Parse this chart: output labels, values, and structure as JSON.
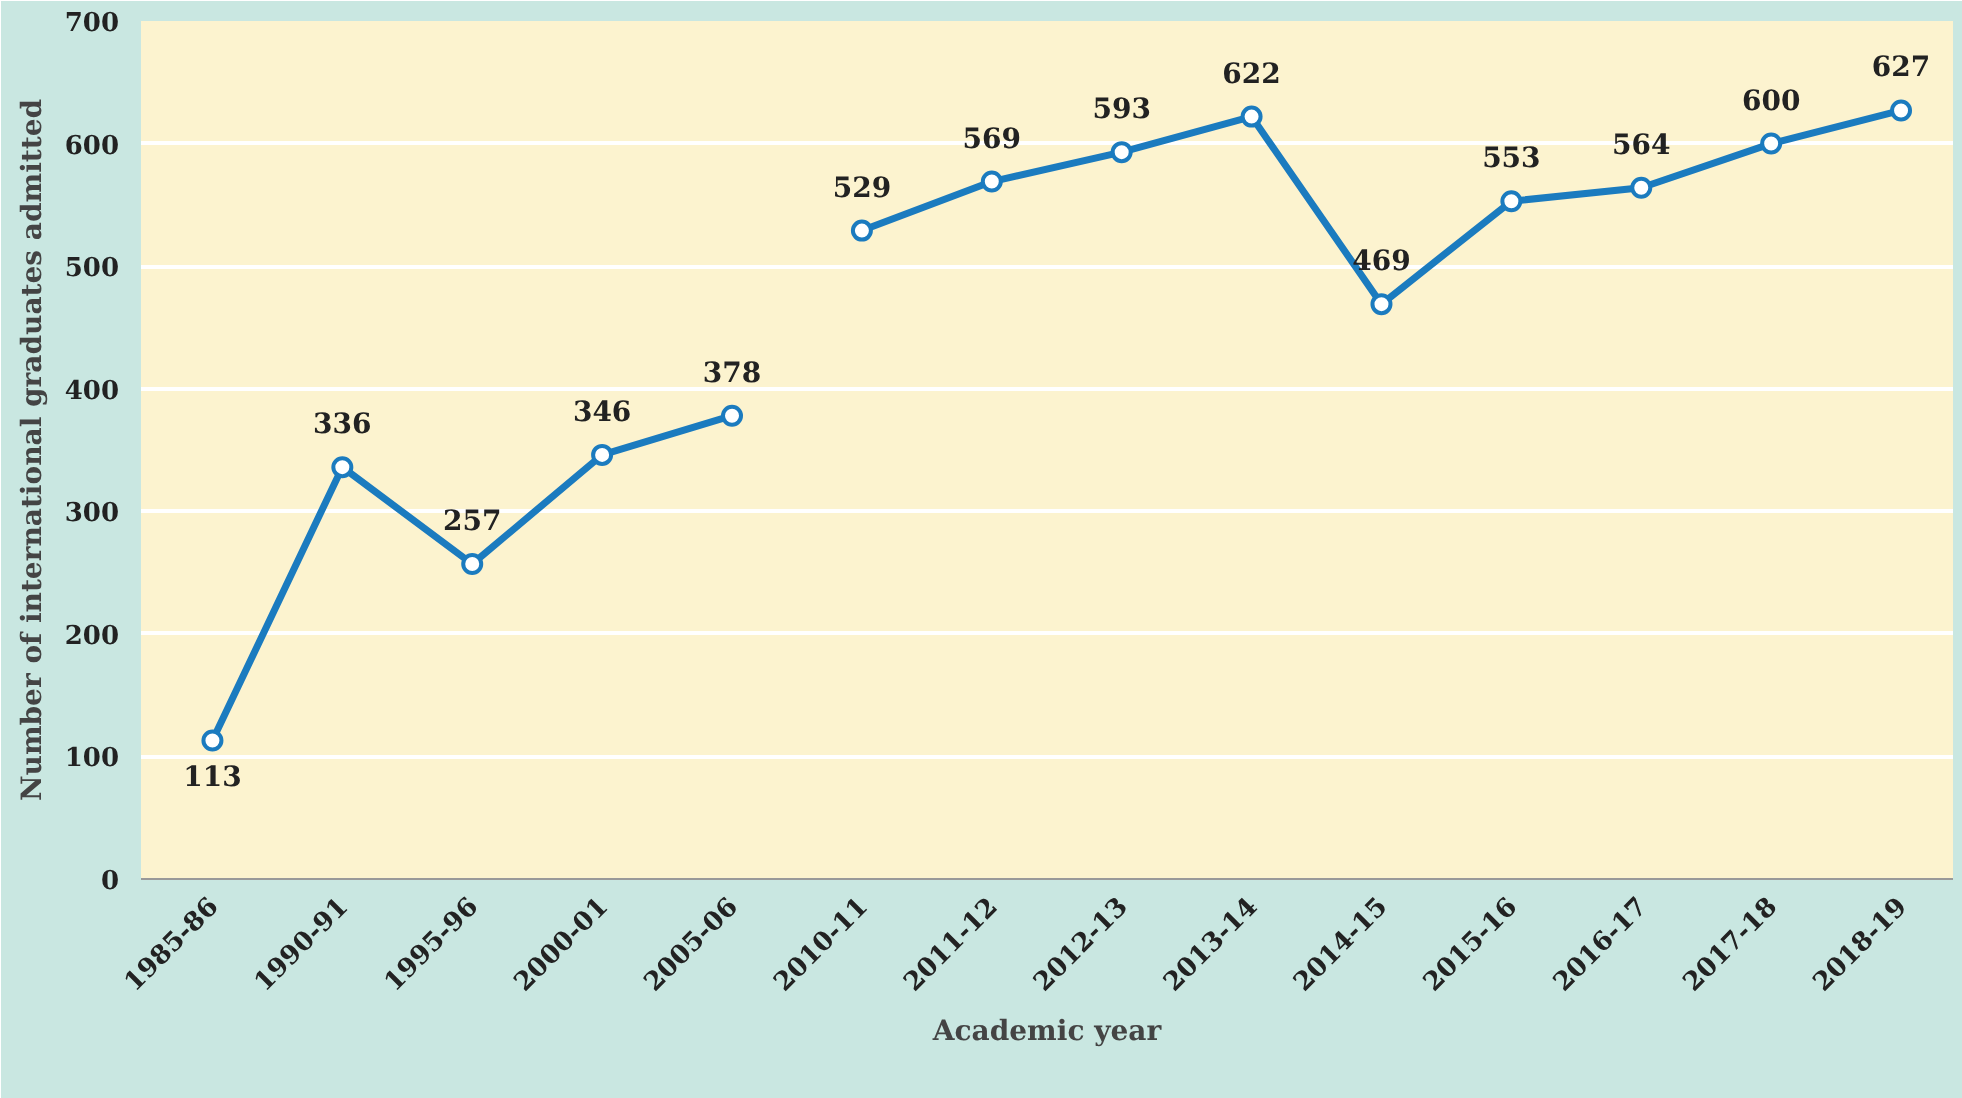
{
  "chart_data": {
    "type": "line",
    "xlabel": "Academic year",
    "ylabel": "Number of international graduates admitted",
    "categories": [
      "1985-86",
      "1990-91",
      "1995-96",
      "2000-01",
      "2005-06",
      "2010-11",
      "2011-12",
      "2012-13",
      "2013-14",
      "2014-15",
      "2015-16",
      "2016-17",
      "2017-18",
      "2018-19"
    ],
    "series": [
      {
        "color": "#1b7bbf",
        "values": [
          113,
          336,
          257,
          346,
          378,
          null,
          null,
          null,
          null,
          null,
          null,
          null,
          null,
          null
        ]
      },
      {
        "color": "#1b7bbf",
        "values": [
          null,
          null,
          null,
          null,
          null,
          529,
          569,
          593,
          622,
          469,
          553,
          564,
          600,
          627
        ]
      }
    ],
    "ylim": [
      0,
      700
    ],
    "yticks": [
      0,
      100,
      200,
      300,
      400,
      500,
      600,
      700
    ],
    "grid": "y",
    "marker": "circle",
    "line_style": "solid",
    "data_labels": true
  }
}
